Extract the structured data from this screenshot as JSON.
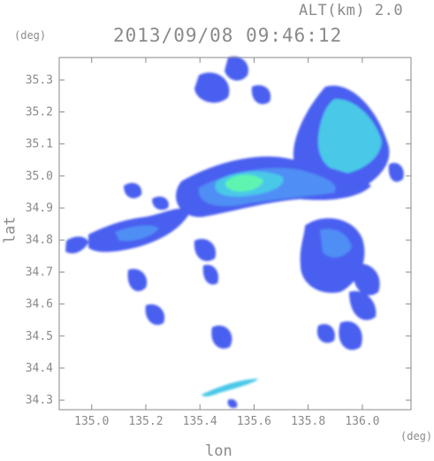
{
  "header": {
    "altitude": "ALT(km) 2.0",
    "timestamp": "2013/09/08 09:46:12"
  },
  "axes": {
    "x_label": "lon",
    "y_label": "lat",
    "x_unit": "(deg)",
    "y_unit": "(deg)",
    "x_range": [
      134.88,
      136.18
    ],
    "y_range": [
      34.27,
      35.37
    ],
    "x_ticks": [
      "135.0",
      "135.2",
      "135.4",
      "135.6",
      "135.8",
      "136.0"
    ],
    "y_ticks": [
      "35.3",
      "35.2",
      "35.1",
      "35.0",
      "34.9",
      "34.8",
      "34.7",
      "34.6",
      "34.5",
      "34.4",
      "34.3"
    ]
  },
  "colors": {
    "weak_echo": "#4a5ff0",
    "moderate_echo": "#4f8ef5",
    "strong_echo": "#49c8e8",
    "peak_echo": "#5ef5b0",
    "axis": "#8a8a8a"
  },
  "map_data": {
    "type": "radar_reflectivity_map",
    "echo_regions": [
      {
        "name": "northeast-cell",
        "lon": 135.98,
        "lat": 35.15,
        "intensity": "strong"
      },
      {
        "name": "central-band-core",
        "lon": 135.55,
        "lat": 34.96,
        "intensity": "peak"
      },
      {
        "name": "central-band",
        "lon": 135.7,
        "lat": 34.97,
        "intensity": "strong"
      },
      {
        "name": "western-band",
        "lon": 135.1,
        "lat": 34.85,
        "intensity": "moderate"
      },
      {
        "name": "northern-cell",
        "lon": 135.55,
        "lat": 35.3,
        "intensity": "weak"
      },
      {
        "name": "north-central-cell",
        "lon": 135.4,
        "lat": 35.23,
        "intensity": "weak"
      },
      {
        "name": "southwest-cells",
        "lon": 135.2,
        "lat": 34.6,
        "intensity": "weak"
      },
      {
        "name": "southeast-cells",
        "lon": 136.0,
        "lat": 34.55,
        "intensity": "weak"
      },
      {
        "name": "east-ring",
        "lon": 135.85,
        "lat": 34.75,
        "intensity": "moderate"
      },
      {
        "name": "southern-line",
        "lon": 135.47,
        "lat": 34.32,
        "intensity": "strong"
      }
    ]
  }
}
